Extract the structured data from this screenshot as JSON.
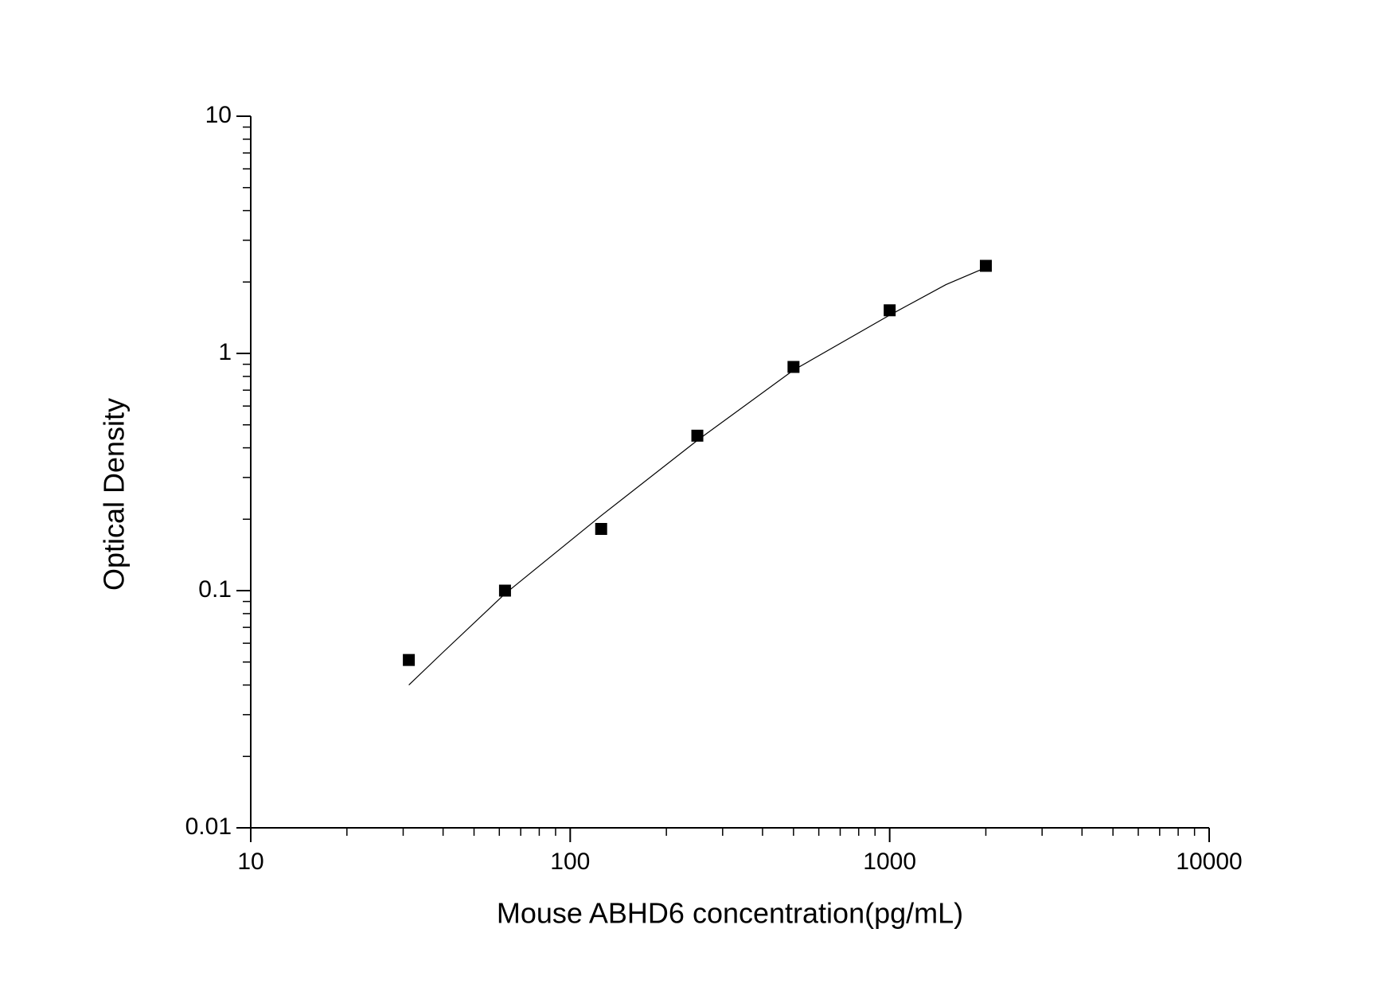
{
  "chart_data": {
    "type": "scatter",
    "x_label": "Mouse ABHD6 concentration(pg/mL)",
    "y_label": "Optical Density",
    "x": [
      31.25,
      62.5,
      125,
      250,
      500,
      1000,
      2000
    ],
    "values": [
      0.051,
      0.1,
      0.182,
      0.45,
      0.877,
      1.52,
      2.34
    ],
    "color": "#000000",
    "fit": {
      "x": [
        31.25,
        40,
        62.5,
        125,
        250,
        500,
        1000,
        1500,
        2000
      ],
      "values": [
        0.04,
        0.055,
        0.097,
        0.207,
        0.43,
        0.85,
        1.45,
        1.95,
        2.3
      ]
    },
    "xlim": [
      10,
      10000
    ],
    "xticks": [
      10,
      100,
      1000,
      10000
    ],
    "ylim": [
      0.01,
      10
    ],
    "yticks": [
      0.01,
      0.1,
      1,
      10
    ],
    "xscale": "log",
    "yscale": "log"
  }
}
